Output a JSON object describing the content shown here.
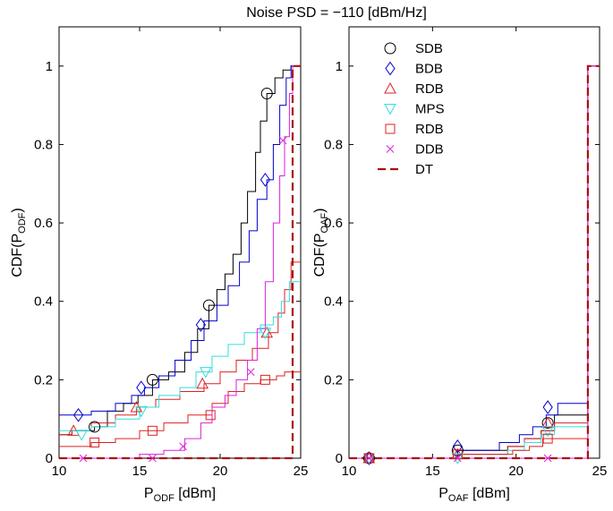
{
  "title": "Noise PSD = −110 [dBm/Hz]",
  "legend": [
    {
      "label": "SDB",
      "color": "#000000",
      "marker": "circle"
    },
    {
      "label": "BDB",
      "color": "#0000cc",
      "marker": "diamond"
    },
    {
      "label": "RDB",
      "color": "#dd2222",
      "marker": "triangle-up"
    },
    {
      "label": "MPS",
      "color": "#33dddd",
      "marker": "triangle-down"
    },
    {
      "label": "RDB",
      "color": "#dd2222",
      "marker": "square"
    },
    {
      "label": "DDB",
      "color": "#dd22dd",
      "marker": "x"
    },
    {
      "label": "DT",
      "color": "#aa1111",
      "marker": "dashed-line"
    }
  ],
  "chart_data": [
    {
      "type": "line",
      "ylabel_main": "CDF(P",
      "ylabel_sub": "ODF",
      "ylabel_end": ")",
      "xlabel_main": "P",
      "xlabel_sub": "ODF",
      "xlabel_end": " [dBm]",
      "xlim": [
        10,
        25
      ],
      "ylim": [
        0,
        1.1
      ],
      "xticks": [
        "10",
        "15",
        "20",
        "25"
      ],
      "yticks": [
        "0",
        "0.2",
        "0.4",
        "0.6",
        "0.8",
        "1"
      ],
      "series": [
        {
          "name": "SDB",
          "color": "#000000",
          "marker": "circle",
          "x": [
            10,
            10.8,
            11.5,
            12.2,
            13,
            14,
            14.9,
            15.8,
            16.8,
            17.8,
            18.6,
            19.3,
            19.8,
            20.3,
            20.8,
            21.3,
            21.7,
            22.2,
            22.5,
            22.9,
            23.4,
            23.9,
            24.4,
            25
          ],
          "y": [
            0.06,
            0.07,
            0.07,
            0.08,
            0.12,
            0.14,
            0.16,
            0.2,
            0.22,
            0.27,
            0.33,
            0.39,
            0.43,
            0.47,
            0.52,
            0.6,
            0.68,
            0.78,
            0.86,
            0.93,
            0.97,
            0.99,
            1,
            1
          ],
          "marker_x": [
            12.2,
            15.8,
            19.3,
            22.9
          ],
          "marker_y": [
            0.08,
            0.2,
            0.39,
            0.93
          ]
        },
        {
          "name": "BDB",
          "color": "#0000cc",
          "marker": "diamond",
          "x": [
            10,
            11,
            12,
            13.5,
            14.5,
            15.3,
            16.2,
            17.2,
            18.2,
            19,
            19.8,
            20.5,
            21.2,
            21.8,
            22.3,
            22.9,
            23.3,
            23.7,
            24.1,
            24.4,
            25
          ],
          "y": [
            0.11,
            0.11,
            0.12,
            0.14,
            0.16,
            0.18,
            0.21,
            0.25,
            0.3,
            0.35,
            0.39,
            0.44,
            0.5,
            0.58,
            0.66,
            0.71,
            0.8,
            0.9,
            0.97,
            1,
            1
          ],
          "marker_x": [
            11.2,
            15.1,
            18.8,
            22.8
          ],
          "marker_y": [
            0.11,
            0.18,
            0.34,
            0.71
          ]
        },
        {
          "name": "RDB",
          "color": "#dd2222",
          "marker": "triangle-up",
          "x": [
            10,
            10.8,
            12,
            13.5,
            14.8,
            16,
            17.5,
            19,
            20,
            21,
            22,
            23,
            23.6,
            24,
            24.4,
            25
          ],
          "y": [
            0.06,
            0.07,
            0.09,
            0.11,
            0.13,
            0.15,
            0.17,
            0.19,
            0.22,
            0.25,
            0.28,
            0.32,
            0.37,
            0.43,
            0.5,
            0.5
          ],
          "marker_x": [
            10.9,
            14.8,
            18.9,
            22.9
          ],
          "marker_y": [
            0.07,
            0.13,
            0.19,
            0.32
          ]
        },
        {
          "name": "MPS",
          "color": "#33dddd",
          "marker": "triangle-down",
          "x": [
            10,
            11,
            12,
            13.5,
            15,
            16.2,
            17.5,
            18.5,
            19.5,
            20.5,
            21.5,
            22.5,
            23.3,
            23.8,
            24.3,
            25
          ],
          "y": [
            0.07,
            0.07,
            0.08,
            0.1,
            0.13,
            0.16,
            0.18,
            0.22,
            0.26,
            0.29,
            0.32,
            0.34,
            0.36,
            0.4,
            0.45,
            0.45
          ],
          "marker_x": [
            11.4,
            15.1,
            19.1,
            22.8
          ],
          "marker_y": [
            0.06,
            0.12,
            0.22,
            0.32
          ]
        },
        {
          "name": "RDB",
          "color": "#dd2222",
          "marker": "square",
          "x": [
            10,
            11,
            12,
            13.5,
            15,
            16.5,
            18,
            19.5,
            20.5,
            21.5,
            22.5,
            23.5,
            24,
            24.4,
            25
          ],
          "y": [
            0.03,
            0.03,
            0.04,
            0.05,
            0.07,
            0.09,
            0.11,
            0.14,
            0.17,
            0.19,
            0.2,
            0.21,
            0.22,
            0.22,
            0.22
          ],
          "marker_x": [
            12.2,
            15.8,
            19.4,
            22.8
          ],
          "marker_y": [
            0.04,
            0.07,
            0.11,
            0.2
          ]
        },
        {
          "name": "DDB",
          "color": "#dd22dd",
          "marker": "x",
          "x": [
            10,
            13,
            15,
            16.5,
            17.8,
            18.8,
            19.5,
            20.3,
            21,
            21.7,
            22.3,
            22.8,
            23.3,
            23.7,
            24,
            24.3,
            24.5,
            25
          ],
          "y": [
            0,
            0,
            0.01,
            0.02,
            0.05,
            0.09,
            0.13,
            0.16,
            0.2,
            0.25,
            0.33,
            0.45,
            0.6,
            0.72,
            0.82,
            0.93,
            1,
            1
          ],
          "marker_x": [
            11.5,
            15.8,
            17.7,
            21.9,
            23.9
          ],
          "marker_y": [
            0,
            0,
            0.03,
            0.22,
            0.81
          ]
        },
        {
          "name": "DT",
          "color": "#aa1111",
          "marker": "dashed-line",
          "dashed": true,
          "x": [
            10,
            24.5,
            24.5,
            25
          ],
          "y": [
            0,
            0,
            1,
            1
          ]
        }
      ]
    },
    {
      "type": "line",
      "ylabel_main": "CDF(P",
      "ylabel_sub": "OAF",
      "ylabel_end": ")",
      "xlabel_main": "P",
      "xlabel_sub": "OAF",
      "xlabel_end": " [dBm]",
      "xlim": [
        10,
        25
      ],
      "ylim": [
        0,
        1.1
      ],
      "xticks": [
        "10",
        "15",
        "20",
        "25"
      ],
      "yticks": [
        "0",
        "0.2",
        "0.4",
        "0.6",
        "0.8",
        "1"
      ],
      "series": [
        {
          "name": "SDB",
          "color": "#000000",
          "marker": "circle",
          "x": [
            10,
            16.5,
            16.5,
            19.5,
            20.5,
            21.5,
            22.3,
            24.3,
            24.3,
            25
          ],
          "y": [
            0,
            0,
            0.02,
            0.03,
            0.05,
            0.07,
            0.11,
            0.11,
            1,
            1
          ],
          "marker_x": [
            11.2,
            16.5,
            21.9
          ],
          "marker_y": [
            0,
            0.02,
            0.09
          ]
        },
        {
          "name": "BDB",
          "color": "#0000cc",
          "marker": "diamond",
          "x": [
            10,
            16.5,
            16.5,
            19,
            20.2,
            21,
            21.8,
            22.5,
            24.3,
            24.3,
            25
          ],
          "y": [
            0,
            0,
            0.02,
            0.04,
            0.06,
            0.08,
            0.11,
            0.14,
            0.14,
            1,
            1
          ],
          "marker_x": [
            11.2,
            16.5,
            21.9
          ],
          "marker_y": [
            0,
            0.03,
            0.13
          ]
        },
        {
          "name": "RDB",
          "color": "#dd2222",
          "marker": "triangle-up",
          "x": [
            10,
            16.5,
            16.5,
            19.5,
            20.5,
            21.5,
            22.3,
            24.3,
            24.3,
            25
          ],
          "y": [
            0,
            0,
            0.01,
            0.03,
            0.05,
            0.07,
            0.09,
            0.09,
            1,
            1
          ],
          "marker_x": [
            11.2,
            16.5,
            21.9
          ],
          "marker_y": [
            0,
            0.01,
            0.09
          ]
        },
        {
          "name": "MPS",
          "color": "#33dddd",
          "marker": "triangle-down",
          "x": [
            10,
            16.5,
            16.5,
            19.5,
            20.5,
            21.5,
            22.3,
            24.3,
            24.3,
            25
          ],
          "y": [
            0,
            0,
            0.01,
            0.02,
            0.04,
            0.06,
            0.08,
            0.08,
            1,
            1
          ],
          "marker_x": [
            11.2,
            16.5,
            21.9
          ],
          "marker_y": [
            0,
            0,
            0.07
          ]
        },
        {
          "name": "RDB",
          "color": "#dd2222",
          "marker": "square",
          "x": [
            10,
            16.5,
            16.5,
            19.8,
            20.8,
            21.6,
            24.3,
            24.3,
            25
          ],
          "y": [
            0,
            0,
            0.01,
            0.02,
            0.03,
            0.05,
            0.05,
            1,
            1
          ],
          "marker_x": [
            11.2,
            16.5,
            21.9
          ],
          "marker_y": [
            0,
            0.01,
            0.05
          ]
        },
        {
          "name": "DDB",
          "color": "#dd22dd",
          "marker": "x",
          "x": [
            10,
            24.3,
            24.3,
            25
          ],
          "y": [
            0,
            0,
            1,
            1
          ],
          "marker_x": [
            11.2,
            16.5,
            21.9
          ],
          "marker_y": [
            0,
            0,
            0
          ]
        },
        {
          "name": "DT",
          "color": "#aa1111",
          "marker": "dashed-line",
          "dashed": true,
          "x": [
            10,
            24.3,
            24.3,
            25
          ],
          "y": [
            0,
            0,
            1,
            1
          ]
        }
      ]
    }
  ]
}
